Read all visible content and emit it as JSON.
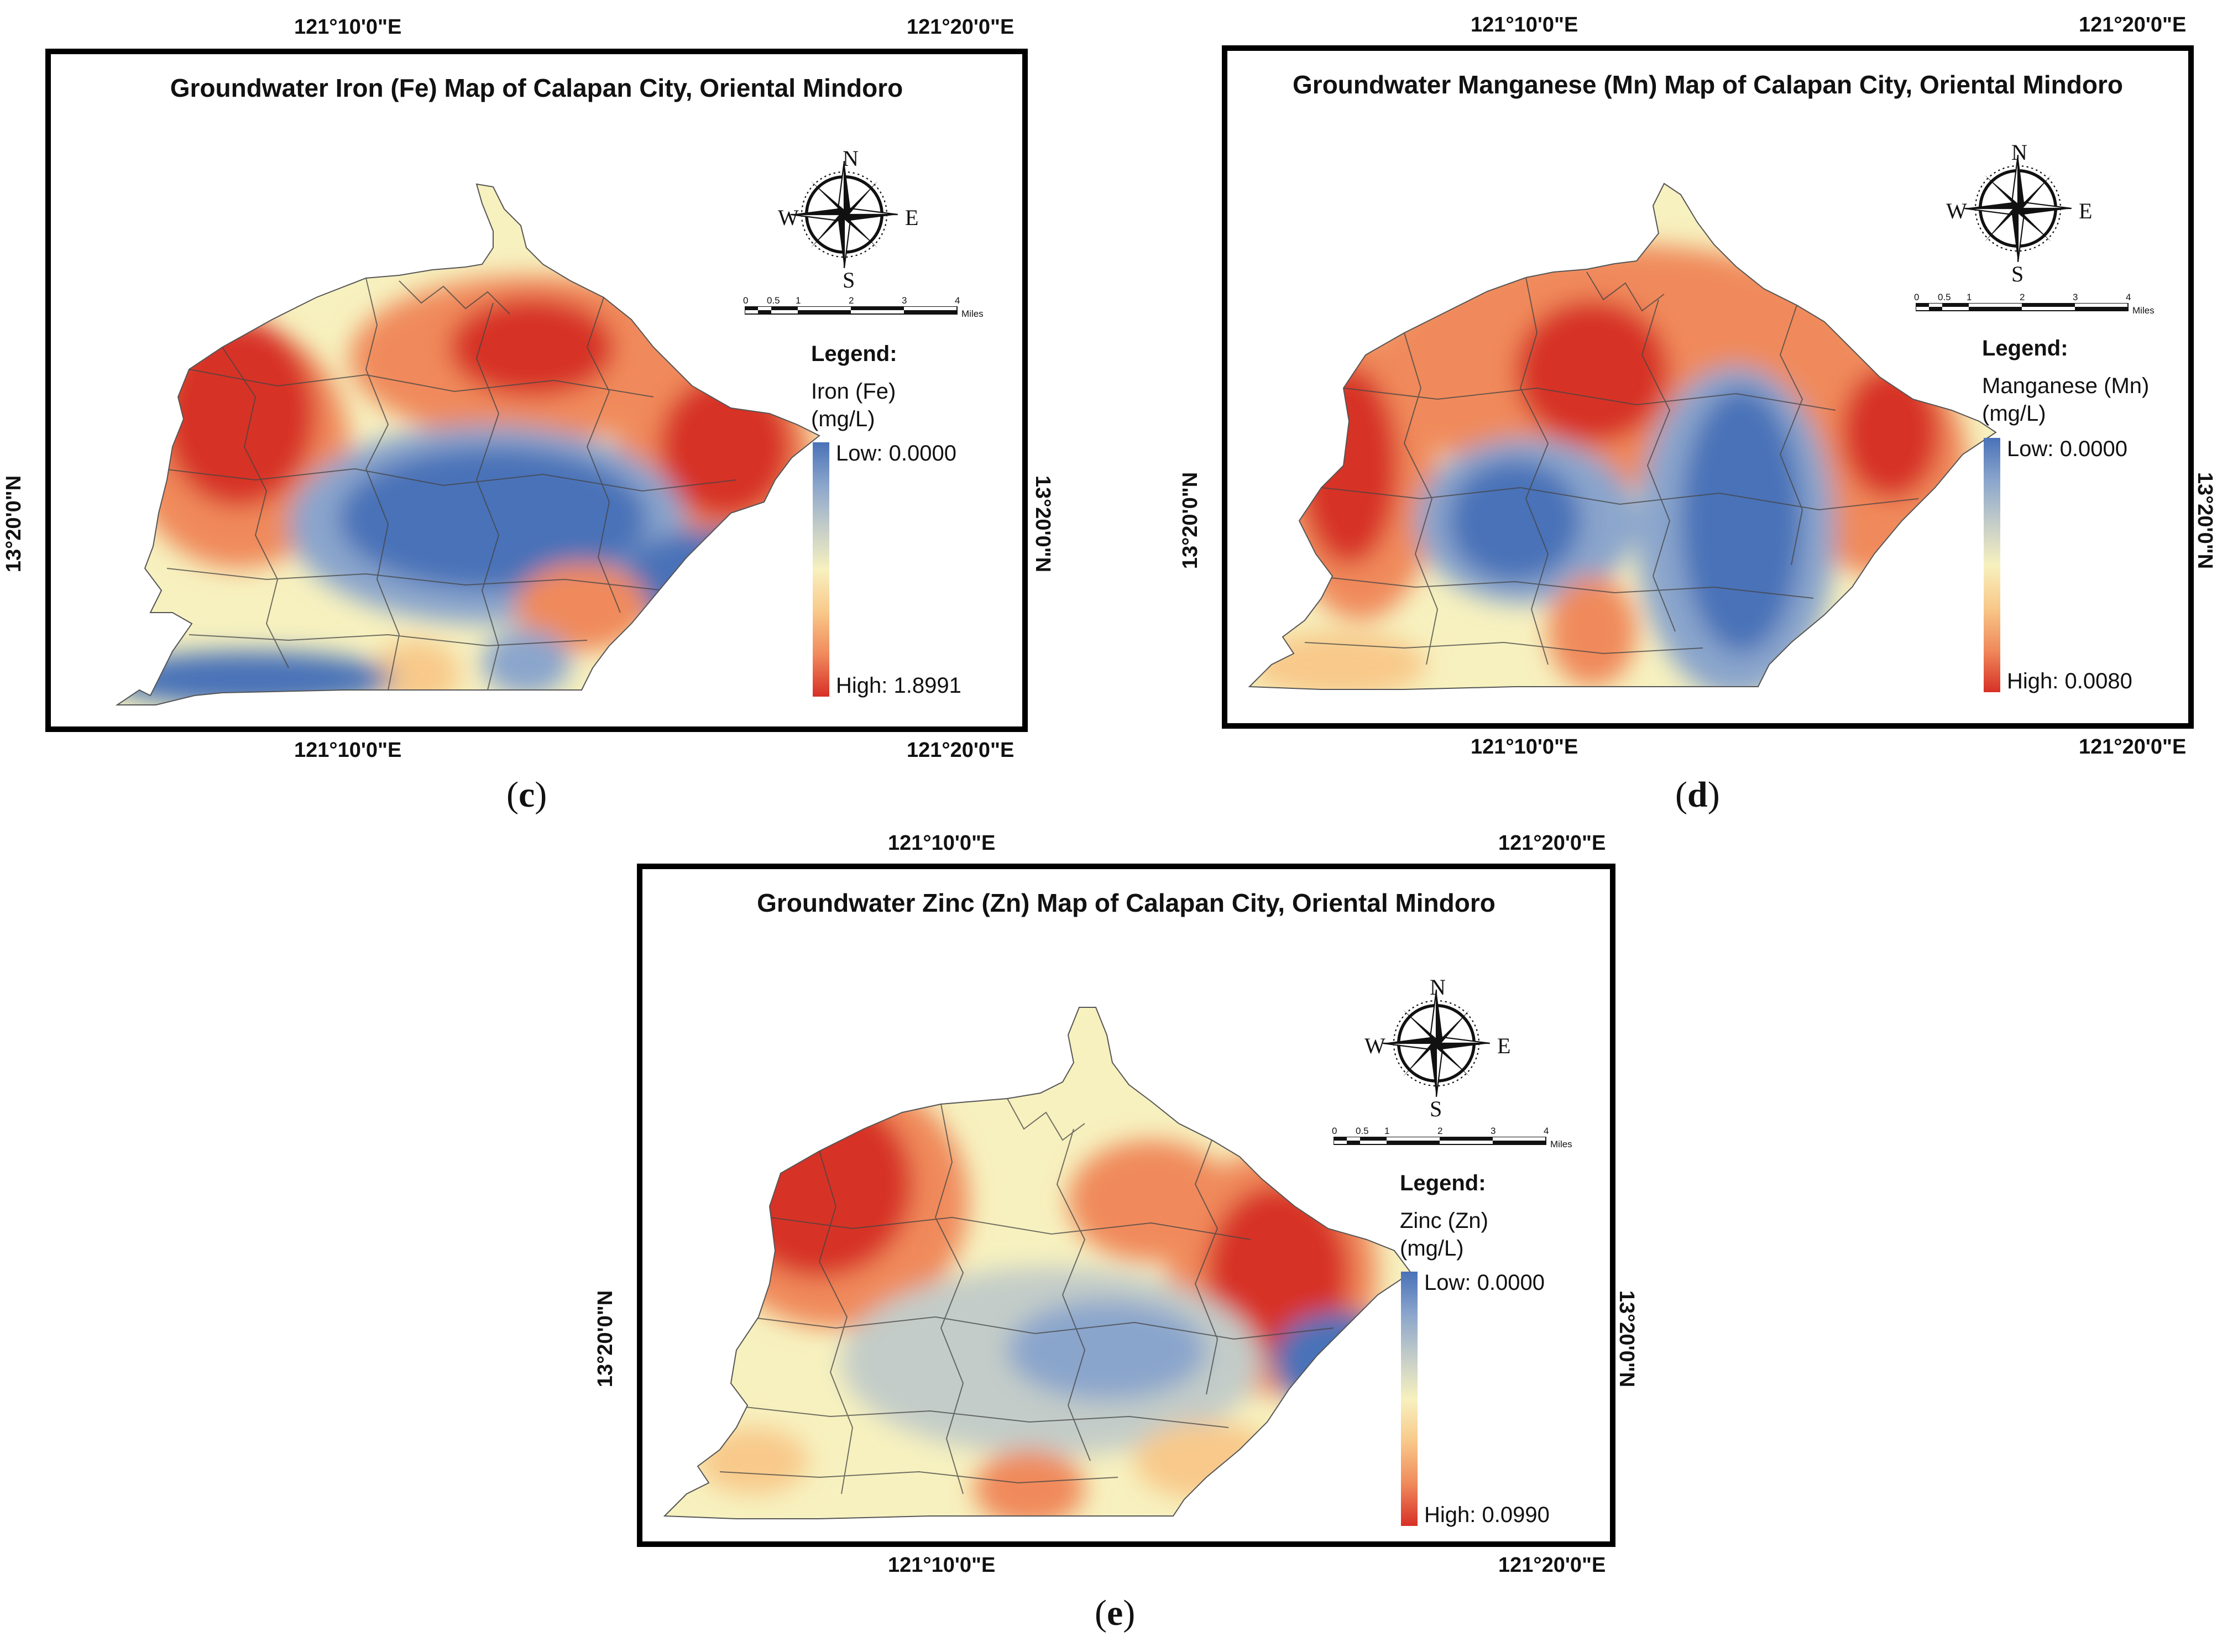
{
  "panels": [
    {
      "id": "fe",
      "title": "Groundwater Iron (Fe) Map of Calapan City, Oriental Mindoro",
      "caption_letter": "c",
      "legend_title": "Legend:",
      "element": "Iron (Fe)",
      "unit": "(mg/L)",
      "low": "Low: 0.0000",
      "high": "High: 1.8991",
      "low_value": 0.0,
      "high_value": 1.8991,
      "coords": {
        "lon_a": "121°10'0\"E",
        "lon_b": "121°20'0\"E",
        "lat": "13°20'0\"N"
      },
      "compass": {
        "n": "N",
        "s": "S",
        "e": "E",
        "w": "W"
      },
      "scale": {
        "ticks": [
          "0",
          "0.5",
          "1",
          "2",
          "3",
          "4"
        ],
        "unit": "Miles"
      }
    },
    {
      "id": "mn",
      "title": "Groundwater Manganese (Mn) Map of Calapan City, Oriental Mindoro",
      "caption_letter": "d",
      "legend_title": "Legend:",
      "element": "Manganese (Mn)",
      "unit": "(mg/L)",
      "low": "Low: 0.0000",
      "high": "High: 0.0080",
      "low_value": 0.0,
      "high_value": 0.008,
      "coords": {
        "lon_a": "121°10'0\"E",
        "lon_b": "121°20'0\"E",
        "lat": "13°20'0\"N"
      },
      "compass": {
        "n": "N",
        "s": "S",
        "e": "E",
        "w": "W"
      },
      "scale": {
        "ticks": [
          "0",
          "0.5",
          "1",
          "2",
          "3",
          "4"
        ],
        "unit": "Miles"
      }
    },
    {
      "id": "zn",
      "title": "Groundwater Zinc (Zn) Map of Calapan City, Oriental Mindoro",
      "caption_letter": "e",
      "legend_title": "Legend:",
      "element": "Zinc (Zn)",
      "unit": "(mg/L)",
      "low": "Low: 0.0000",
      "high": "High: 0.0990",
      "low_value": 0.0,
      "high_value": 0.099,
      "coords": {
        "lon_a": "121°10'0\"E",
        "lon_b": "121°20'0\"E",
        "lat": "13°20'0\"N"
      },
      "compass": {
        "n": "N",
        "s": "S",
        "e": "E",
        "w": "W"
      },
      "scale": {
        "ticks": [
          "0",
          "0.5",
          "1",
          "2",
          "3",
          "4"
        ],
        "unit": "Miles"
      }
    }
  ],
  "colors": {
    "low": "#4a72b8",
    "mid": "#f7f1bf",
    "high": "#d73027",
    "ramp_stops": [
      "#4a72b8",
      "#8aa5cc",
      "#c3ccc8",
      "#f7f1bf",
      "#f8c98a",
      "#f08a5c",
      "#d73027"
    ]
  }
}
